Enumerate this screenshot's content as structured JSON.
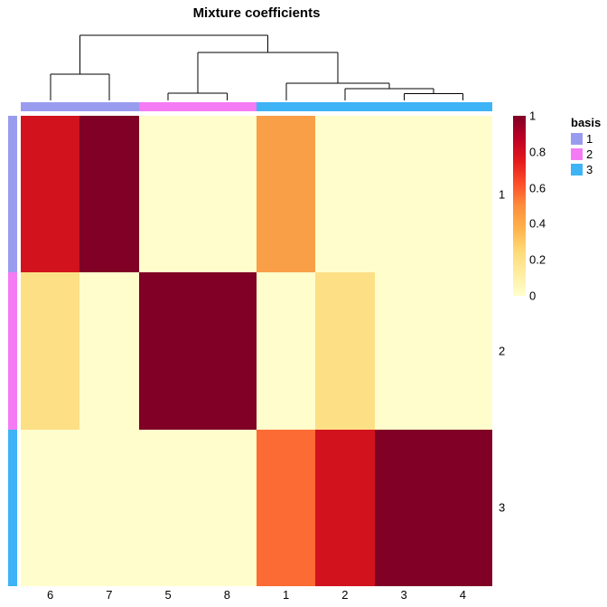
{
  "title": "Mixture coefficients",
  "legend": {
    "basis": {
      "title": "basis",
      "items": [
        {
          "label": "1",
          "color": "#999CEE"
        },
        {
          "label": "2",
          "color": "#F47BF3"
        },
        {
          "label": "3",
          "color": "#3EB3F6"
        }
      ]
    },
    "colorbar": {
      "ticks": [
        {
          "label": "1",
          "value": 1.0
        },
        {
          "label": "0.8",
          "value": 0.8
        },
        {
          "label": "0.6",
          "value": 0.6
        },
        {
          "label": "0.4",
          "value": 0.4
        },
        {
          "label": "0.2",
          "value": 0.2
        },
        {
          "label": "0",
          "value": 0.0
        }
      ]
    }
  },
  "chart_data": {
    "type": "heatmap",
    "title": "Mixture coefficients",
    "columns": [
      "6",
      "7",
      "5",
      "8",
      "1",
      "2",
      "3",
      "4"
    ],
    "rows": [
      "1",
      "2",
      "3"
    ],
    "values": [
      [
        0.82,
        1.0,
        0.0,
        0.0,
        0.45,
        0.0,
        0.0,
        0.0
      ],
      [
        0.18,
        0.0,
        1.0,
        1.0,
        0.0,
        0.18,
        0.0,
        0.0
      ],
      [
        0.0,
        0.0,
        0.0,
        0.0,
        0.55,
        0.82,
        1.0,
        1.0
      ]
    ],
    "cell_colors": [
      [
        "#D2131E",
        "#800026",
        "#FFFDCC",
        "#FFFDCC",
        "#F99F48",
        "#FFFDCC",
        "#FFFDCC",
        "#FFFDCC"
      ],
      [
        "#FDDF86",
        "#FFFDCC",
        "#800026",
        "#800026",
        "#FFFDCC",
        "#FDDF86",
        "#FFFDCC",
        "#FFFDCC"
      ],
      [
        "#FFFDCC",
        "#FFFDCC",
        "#FFFDCC",
        "#FFFDCC",
        "#FC6B33",
        "#D2131E",
        "#800026",
        "#800026"
      ]
    ],
    "col_annotation": [
      "1",
      "1",
      "2",
      "2",
      "3",
      "3",
      "3",
      "3"
    ],
    "row_annotation": [
      "1",
      "2",
      "3"
    ],
    "annotation_colors": {
      "1": "#999CEE",
      "2": "#F47BF3",
      "3": "#3EB3F6"
    },
    "colorscale": {
      "range": [
        0,
        1
      ],
      "stops": [
        "#FFFFCC",
        "#FFEDA0",
        "#FED976",
        "#FEB24C",
        "#FD8D3C",
        "#FC4E2A",
        "#E31A1C",
        "#BD0026",
        "#800026"
      ]
    },
    "col_dendrogram": {
      "segments": [
        [
          88.5,
          39,
          296.4,
          39
        ],
        [
          218.8,
          58,
          373.9,
          58
        ],
        [
          56,
          82,
          121,
          82
        ],
        [
          316.8,
          92,
          431,
          92
        ],
        [
          382.1,
          98,
          480,
          98
        ],
        [
          186.2,
          103,
          251.5,
          103
        ],
        [
          447.4,
          103.5,
          512.6,
          103.5
        ],
        [
          56,
          82,
          56,
          111
        ],
        [
          121,
          82,
          121,
          111
        ],
        [
          88.5,
          39,
          88.5,
          82
        ],
        [
          186.2,
          103,
          186.2,
          111
        ],
        [
          251.5,
          103,
          251.5,
          111
        ],
        [
          218.8,
          58,
          218.8,
          103
        ],
        [
          316.8,
          92,
          316.8,
          111
        ],
        [
          382.1,
          98,
          382.1,
          111
        ],
        [
          447.4,
          103.5,
          447.4,
          111
        ],
        [
          512.6,
          103.5,
          512.6,
          111
        ],
        [
          480,
          98,
          480,
          103.5
        ],
        [
          431,
          92,
          431,
          98
        ],
        [
          373.9,
          58,
          373.9,
          92
        ],
        [
          296.4,
          39,
          296.4,
          58
        ]
      ]
    }
  }
}
